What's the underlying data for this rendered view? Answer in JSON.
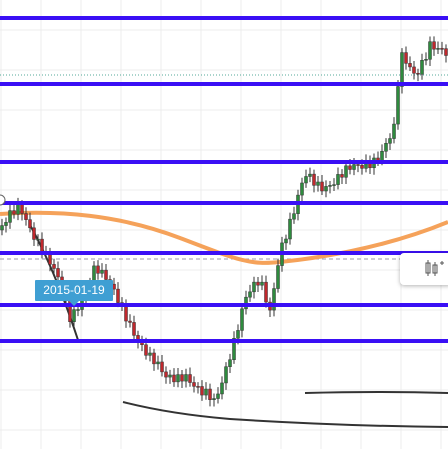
{
  "tooltip": {
    "label": "2015-01-19"
  }
}
